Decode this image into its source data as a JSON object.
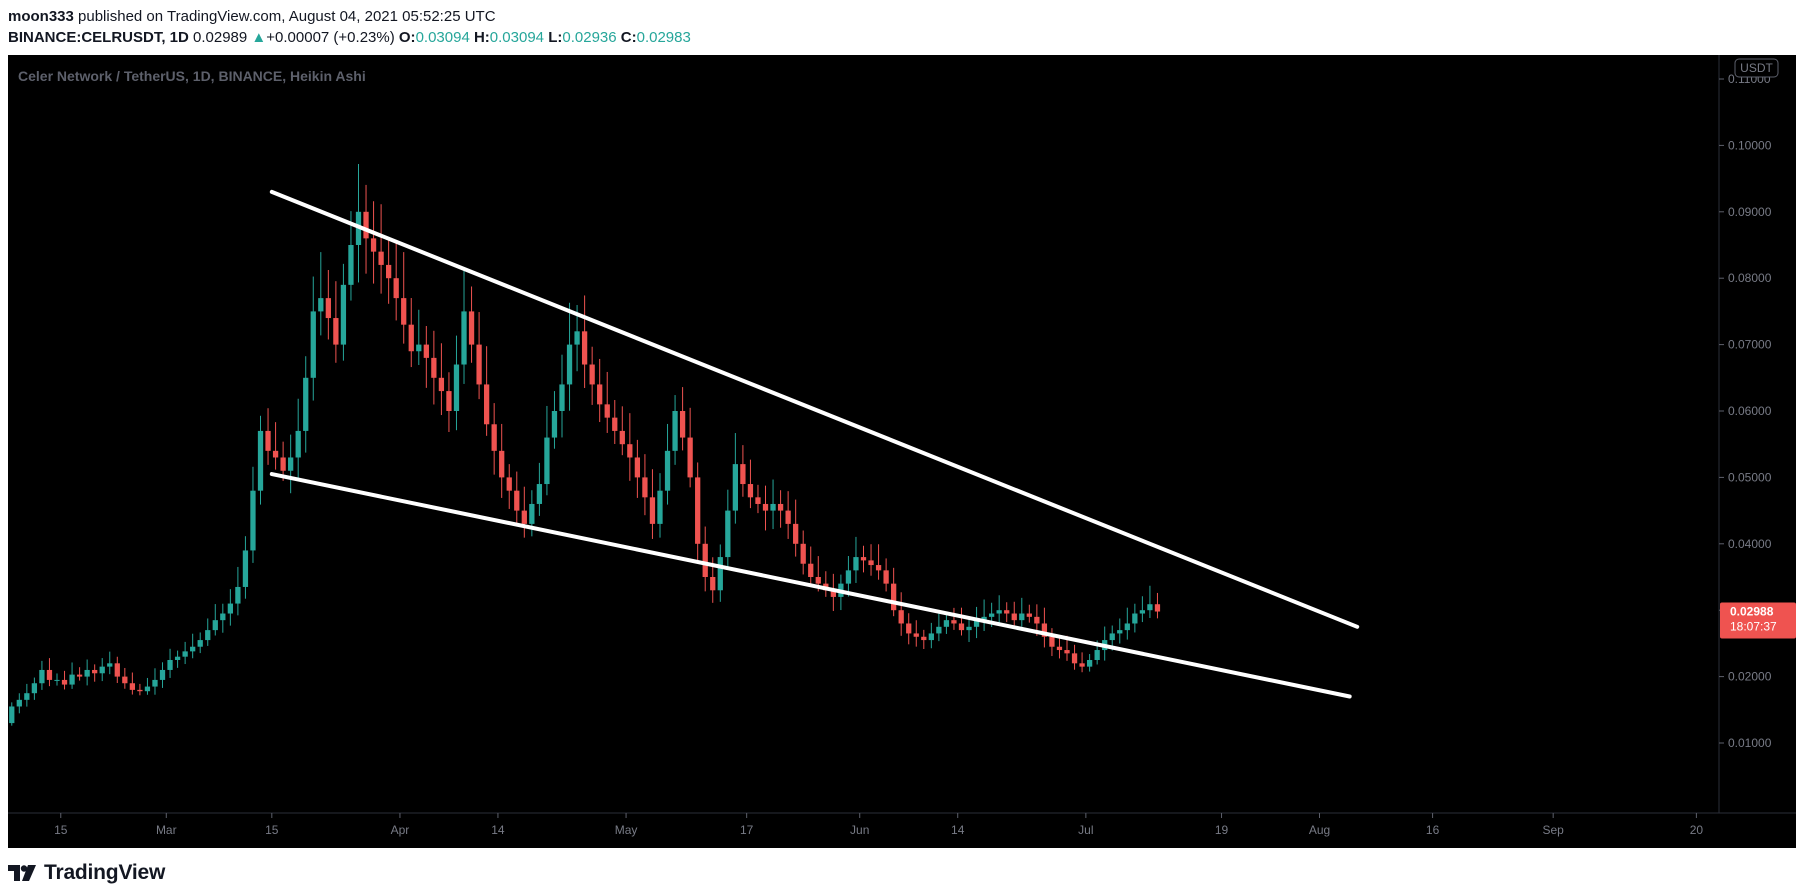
{
  "header": {
    "author": "moon333",
    "published_text": "published on TradingView.com, August 04, 2021 05:52:25 UTC",
    "symbol": "BINANCE:CELRUSDT, 1D",
    "last": "0.02989",
    "change_arrow": "▲",
    "change": "+0.00007 (+0.23%)",
    "o_label": "O:",
    "o": "0.03094",
    "h_label": "H:",
    "h": "0.03094",
    "l_label": "L:",
    "l": "0.02936",
    "c_label": "C:",
    "c": "0.02983"
  },
  "chart": {
    "legend": "Celer Network / TetherUS, 1D, BINANCE, Heikin Ashi",
    "currency_badge": "USDT",
    "price_badge": "0.02988",
    "countdown": "18:07:37",
    "colors": {
      "up": "#26a69a",
      "down": "#ef5350",
      "background": "#000000",
      "axis_text": "#787b86",
      "trendline": "#ffffff"
    }
  },
  "chart_data": {
    "type": "candlestick",
    "title": "Celer Network / TetherUS, 1D, BINANCE, Heikin Ashi",
    "ylabel": "USDT",
    "ylim": [
      0,
      0.11
    ],
    "y_ticks": [
      "0.11000",
      "0.10000",
      "0.09000",
      "0.08000",
      "0.07000",
      "0.06000",
      "0.05000",
      "0.04000",
      "0.03000",
      "0.02000",
      "0.01000"
    ],
    "x_tick_labels": [
      "15",
      "Mar",
      "15",
      "Apr",
      "14",
      "May",
      "17",
      "Jun",
      "14",
      "Jul",
      "19",
      "Aug",
      "16",
      "Sep",
      "20"
    ],
    "x_range": [
      "2021-02-08",
      "2021-09-23"
    ],
    "candles": {
      "start_date": "2021-02-08",
      "open": [
        0.013,
        0.0155,
        0.0165,
        0.0175,
        0.019,
        0.021,
        0.0195,
        0.0195,
        0.0188,
        0.0203,
        0.02,
        0.021,
        0.0205,
        0.0215,
        0.022,
        0.02,
        0.019,
        0.018,
        0.0178,
        0.0185,
        0.0195,
        0.021,
        0.0225,
        0.023,
        0.0238,
        0.0245,
        0.0255,
        0.027,
        0.0285,
        0.0295,
        0.031,
        0.0335,
        0.039,
        0.048,
        0.057,
        0.054,
        0.053,
        0.051,
        0.053,
        0.057,
        0.065,
        0.075,
        0.077,
        0.074,
        0.07,
        0.079,
        0.085,
        0.09,
        0.086,
        0.084,
        0.082,
        0.08,
        0.077,
        0.073,
        0.069,
        0.07,
        0.068,
        0.065,
        0.063,
        0.06,
        0.067,
        0.075,
        0.07,
        0.064,
        0.058,
        0.054,
        0.05,
        0.048,
        0.045,
        0.043,
        0.046,
        0.049,
        0.056,
        0.06,
        0.064,
        0.07,
        0.072,
        0.067,
        0.064,
        0.061,
        0.059,
        0.057,
        0.055,
        0.053,
        0.05,
        0.047,
        0.043,
        0.048,
        0.054,
        0.06,
        0.056,
        0.05,
        0.04,
        0.035,
        0.033,
        0.038,
        0.045,
        0.052,
        0.049,
        0.047,
        0.046,
        0.045,
        0.046,
        0.045,
        0.043,
        0.04,
        0.037,
        0.035,
        0.034,
        0.033,
        0.032,
        0.034,
        0.036,
        0.038,
        0.0375,
        0.0368,
        0.036,
        0.034,
        0.03,
        0.028,
        0.0265,
        0.026,
        0.0255,
        0.0265,
        0.0275,
        0.0285,
        0.028,
        0.027,
        0.0275,
        0.0285,
        0.029,
        0.0295,
        0.03,
        0.0295,
        0.0285,
        0.0295,
        0.029,
        0.028,
        0.026,
        0.0245,
        0.024,
        0.0235,
        0.022,
        0.0215,
        0.0225,
        0.024,
        0.0255,
        0.0265,
        0.027,
        0.028,
        0.0295,
        0.03,
        0.0309
      ],
      "close": [
        0.0155,
        0.0165,
        0.0175,
        0.019,
        0.021,
        0.0195,
        0.0195,
        0.0188,
        0.0203,
        0.02,
        0.021,
        0.0205,
        0.0215,
        0.022,
        0.02,
        0.019,
        0.018,
        0.0178,
        0.0185,
        0.0195,
        0.021,
        0.0225,
        0.023,
        0.0238,
        0.0245,
        0.0255,
        0.027,
        0.0285,
        0.0295,
        0.031,
        0.0335,
        0.039,
        0.048,
        0.057,
        0.054,
        0.053,
        0.051,
        0.053,
        0.057,
        0.065,
        0.075,
        0.077,
        0.074,
        0.07,
        0.079,
        0.085,
        0.09,
        0.086,
        0.084,
        0.082,
        0.08,
        0.077,
        0.073,
        0.069,
        0.07,
        0.068,
        0.065,
        0.063,
        0.06,
        0.067,
        0.075,
        0.07,
        0.064,
        0.058,
        0.054,
        0.05,
        0.048,
        0.045,
        0.043,
        0.046,
        0.049,
        0.056,
        0.06,
        0.064,
        0.07,
        0.072,
        0.067,
        0.064,
        0.061,
        0.059,
        0.057,
        0.055,
        0.053,
        0.05,
        0.047,
        0.043,
        0.048,
        0.054,
        0.06,
        0.056,
        0.05,
        0.04,
        0.035,
        0.033,
        0.038,
        0.045,
        0.052,
        0.049,
        0.047,
        0.046,
        0.045,
        0.046,
        0.045,
        0.043,
        0.04,
        0.037,
        0.035,
        0.034,
        0.033,
        0.032,
        0.034,
        0.036,
        0.038,
        0.0375,
        0.0368,
        0.036,
        0.034,
        0.03,
        0.028,
        0.0265,
        0.026,
        0.0255,
        0.0265,
        0.0275,
        0.0285,
        0.028,
        0.027,
        0.0275,
        0.0285,
        0.029,
        0.0295,
        0.03,
        0.0295,
        0.0285,
        0.0295,
        0.029,
        0.028,
        0.026,
        0.0245,
        0.024,
        0.0235,
        0.022,
        0.0215,
        0.0225,
        0.024,
        0.0255,
        0.0265,
        0.027,
        0.028,
        0.0295,
        0.03,
        0.0309,
        0.0298
      ]
    },
    "trendlines": [
      {
        "name": "upper",
        "from": [
          "2021-03-15",
          0.093
        ],
        "to": [
          "2021-08-06",
          0.0275
        ]
      },
      {
        "name": "lower",
        "from": [
          "2021-03-15",
          0.0505
        ],
        "to": [
          "2021-08-05",
          0.017
        ]
      }
    ],
    "grid": false,
    "legend_position": "top-left"
  },
  "footer": {
    "brand": "TradingView"
  }
}
